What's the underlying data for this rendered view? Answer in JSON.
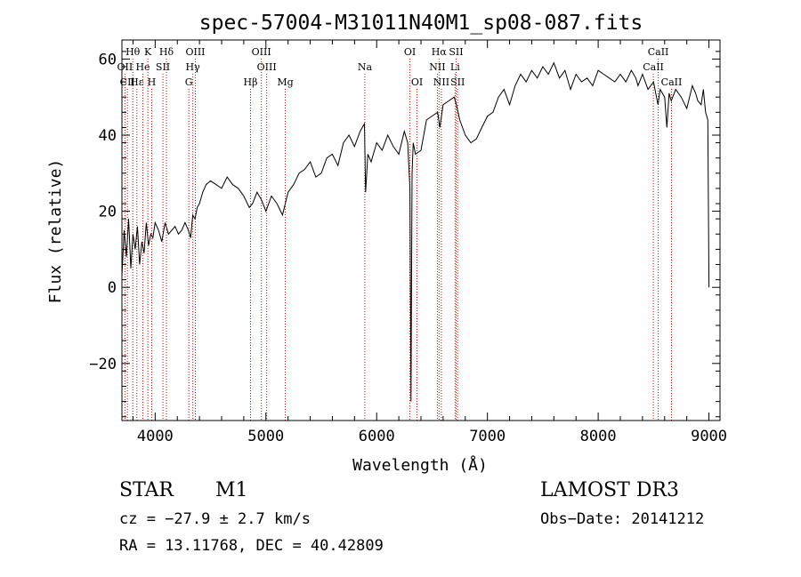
{
  "chart_data": {
    "type": "line",
    "title": "spec-57004-M31011N40M1_sp08-087.fits",
    "xlabel": "Wavelength (Å)",
    "ylabel": "Flux (relative)",
    "xlim": [
      3700,
      9100
    ],
    "ylim": [
      -35,
      65
    ],
    "x_ticks": [
      4000,
      5000,
      6000,
      7000,
      8000,
      9000
    ],
    "x_tick_labels": [
      "4000",
      "5000",
      "6000",
      "7000",
      "8000",
      "9000"
    ],
    "y_ticks": [
      -20,
      0,
      20,
      40,
      60
    ],
    "y_tick_labels": [
      "−20",
      "0",
      "20",
      "40",
      "60"
    ],
    "series": [
      {
        "name": "spectrum",
        "x": [
          3700,
          3720,
          3740,
          3760,
          3780,
          3800,
          3820,
          3840,
          3860,
          3880,
          3900,
          3920,
          3940,
          3960,
          3980,
          4000,
          4030,
          4060,
          4090,
          4120,
          4150,
          4180,
          4210,
          4240,
          4270,
          4300,
          4320,
          4340,
          4360,
          4380,
          4400,
          4430,
          4460,
          4500,
          4550,
          4600,
          4650,
          4700,
          4750,
          4800,
          4850,
          4880,
          4920,
          4960,
          5000,
          5050,
          5100,
          5150,
          5200,
          5250,
          5300,
          5350,
          5400,
          5450,
          5500,
          5550,
          5600,
          5650,
          5700,
          5750,
          5800,
          5850,
          5890,
          5900,
          5920,
          5950,
          6000,
          6050,
          6100,
          6150,
          6200,
          6250,
          6280,
          6300,
          6310,
          6320,
          6330,
          6350,
          6400,
          6450,
          6500,
          6550,
          6570,
          6600,
          6650,
          6700,
          6720,
          6750,
          6800,
          6850,
          6900,
          6950,
          7000,
          7050,
          7100,
          7150,
          7200,
          7250,
          7300,
          7350,
          7400,
          7450,
          7500,
          7550,
          7600,
          7650,
          7700,
          7750,
          7800,
          7850,
          7900,
          7950,
          8000,
          8050,
          8100,
          8150,
          8200,
          8250,
          8300,
          8340,
          8360,
          8400,
          8450,
          8500,
          8540,
          8560,
          8600,
          8620,
          8640,
          8660,
          8700,
          8750,
          8800,
          8850,
          8880,
          8900,
          8930,
          8950,
          8970,
          8990,
          9000
        ],
        "y": [
          3,
          15,
          8,
          18,
          5,
          14,
          10,
          16,
          6,
          12,
          9,
          17,
          11,
          14,
          13,
          17,
          15,
          12,
          17,
          14,
          15,
          16,
          14,
          15,
          17,
          15,
          13,
          19,
          18,
          21,
          22,
          25,
          27,
          28,
          27,
          26,
          29,
          27,
          26,
          24,
          21,
          22,
          25,
          23,
          20,
          24,
          22,
          19,
          25,
          27,
          30,
          31,
          33,
          29,
          30,
          34,
          35,
          32,
          38,
          40,
          37,
          41,
          43,
          25,
          35,
          33,
          38,
          36,
          40,
          37,
          35,
          41,
          38,
          26,
          -30,
          30,
          38,
          35,
          36,
          44,
          45,
          46,
          42,
          48,
          49,
          50,
          48,
          44,
          40,
          38,
          39,
          42,
          45,
          46,
          50,
          52,
          48,
          53,
          56,
          54,
          57,
          55,
          58,
          56,
          59,
          55,
          57,
          52,
          56,
          54,
          55,
          53,
          57,
          56,
          55,
          54,
          56,
          54,
          57,
          55,
          53,
          56,
          52,
          54,
          48,
          52,
          50,
          42,
          51,
          49,
          52,
          50,
          47,
          53,
          51,
          49,
          48,
          52,
          46,
          44,
          0
        ]
      }
    ],
    "line_markers": [
      {
        "label": "Hθ",
        "wl": 3798,
        "row": 1
      },
      {
        "label": "OII",
        "wl": 3727,
        "row": 2
      },
      {
        "label": "CII",
        "wl": 3750,
        "row": 3
      },
      {
        "label": "Hε",
        "wl": 3835,
        "row": 3
      },
      {
        "label": "He",
        "wl": 3889,
        "row": 2
      },
      {
        "label": "K",
        "wl": 3934,
        "row": 1
      },
      {
        "label": "H",
        "wl": 3969,
        "row": 3
      },
      {
        "label": "SII",
        "wl": 4070,
        "row": 2
      },
      {
        "label": "Hδ",
        "wl": 4102,
        "row": 1
      },
      {
        "label": "OIII",
        "wl": 4363,
        "row": 1
      },
      {
        "label": "Hγ",
        "wl": 4340,
        "row": 2
      },
      {
        "label": "G",
        "wl": 4304,
        "row": 3
      },
      {
        "label": "OIII",
        "wl": 4959,
        "row": 1
      },
      {
        "label": "OIII",
        "wl": 5007,
        "row": 2
      },
      {
        "label": "Hβ",
        "wl": 4861,
        "row": 3
      },
      {
        "label": "Mg",
        "wl": 5175,
        "row": 3
      },
      {
        "label": "Na",
        "wl": 5893,
        "row": 2
      },
      {
        "label": "OI",
        "wl": 6300,
        "row": 1
      },
      {
        "label": "OI",
        "wl": 6364,
        "row": 3
      },
      {
        "label": "Hα",
        "wl": 6563,
        "row": 1
      },
      {
        "label": "SII",
        "wl": 6717,
        "row": 1
      },
      {
        "label": "NII",
        "wl": 6548,
        "row": 2
      },
      {
        "label": "Li",
        "wl": 6708,
        "row": 2
      },
      {
        "label": "NII",
        "wl": 6584,
        "row": 3
      },
      {
        "label": "SII",
        "wl": 6731,
        "row": 3
      },
      {
        "label": "CaII",
        "wl": 8542,
        "row": 1
      },
      {
        "label": "CaII",
        "wl": 8498,
        "row": 2
      },
      {
        "label": "CaII",
        "wl": 8662,
        "row": 3
      }
    ]
  },
  "info": {
    "object_class": "STAR",
    "subclass": "M1",
    "survey": "LAMOST DR3",
    "cz": "cz = −27.9 ± 2.7 km/s",
    "obs_date": "Obs−Date: 20141212",
    "coords": "RA =  13.11768, DEC =  40.42809"
  },
  "colors": {
    "line_marker": "#cc0000",
    "spectrum": "#000000"
  }
}
